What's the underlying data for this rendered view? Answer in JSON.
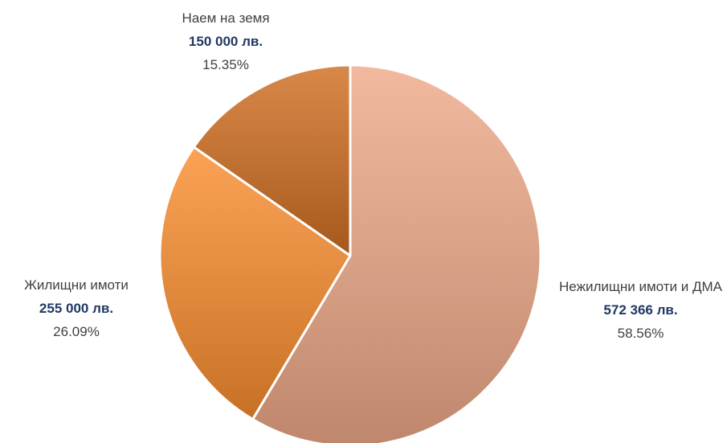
{
  "chart_data": {
    "type": "pie",
    "categories": [
      "Нежилищни имоти и ДМА",
      "Жилищни имоти",
      "Наем на земя"
    ],
    "values": [
      572366,
      255000,
      150000
    ],
    "value_labels": [
      "572 366 лв.",
      "255 000 лв.",
      "150 000 лв."
    ],
    "percent_labels": [
      "58.56%",
      "26.09%",
      "15.35%"
    ],
    "colors": [
      "#eea988",
      "#f98d2f",
      "#cf6e21"
    ]
  }
}
